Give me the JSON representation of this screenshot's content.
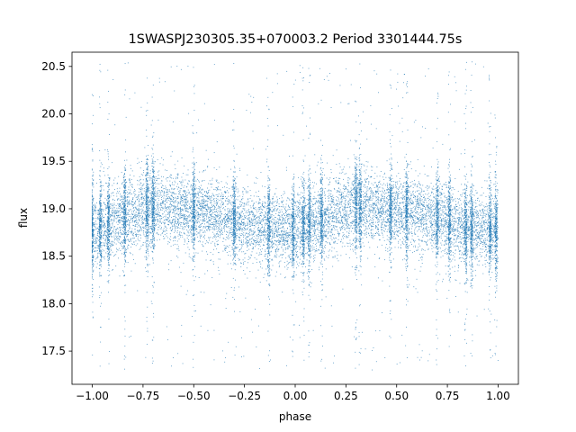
{
  "chart_data": {
    "type": "scatter",
    "title": "1SWASPJ230305.35+070003.2 Period 3301444.75s",
    "xlabel": "phase",
    "ylabel": "flux",
    "xlim": [
      -1.1,
      1.1
    ],
    "ylim": [
      17.15,
      20.65
    ],
    "x_ticks": [
      -1.0,
      -0.75,
      -0.5,
      -0.25,
      0.0,
      0.25,
      0.5,
      0.75,
      1.0
    ],
    "x_tick_labels": [
      "−1.00",
      "−0.75",
      "−0.50",
      "−0.25",
      "0.00",
      "0.25",
      "0.50",
      "0.75",
      "1.00"
    ],
    "y_ticks": [
      17.5,
      18.0,
      18.5,
      19.0,
      19.5,
      20.0,
      20.5
    ],
    "y_tick_labels": [
      "17.5",
      "18.0",
      "18.5",
      "19.0",
      "19.5",
      "20.0",
      "20.5"
    ],
    "marker_color": "#1f77b4",
    "grid": false,
    "legend": false,
    "series": [
      {
        "x_range": [
          -1.0,
          1.0
        ],
        "folded": true,
        "profile": {
          "phase": [
            0.0,
            0.1,
            0.2,
            0.3,
            0.4,
            0.5,
            0.6,
            0.7,
            0.8,
            0.9,
            1.0
          ],
          "median_flux": [
            18.78,
            18.85,
            18.95,
            19.02,
            19.0,
            18.97,
            18.93,
            18.88,
            18.82,
            18.78,
            18.78
          ],
          "spread_flux": [
            0.3,
            0.3,
            0.32,
            0.32,
            0.3,
            0.3,
            0.3,
            0.3,
            0.3,
            0.3,
            0.3
          ]
        },
        "dense_bands_phase": [
          -1.0,
          -0.96,
          -0.92,
          -0.84,
          -0.73,
          -0.7,
          -0.5,
          -0.3,
          -0.13,
          -0.01,
          0.04,
          0.07,
          0.13,
          0.3,
          0.32,
          0.47,
          0.55,
          0.7,
          0.76,
          0.84,
          0.87,
          0.96,
          0.99
        ],
        "outlier_flux_range": [
          17.3,
          20.55
        ]
      }
    ]
  }
}
